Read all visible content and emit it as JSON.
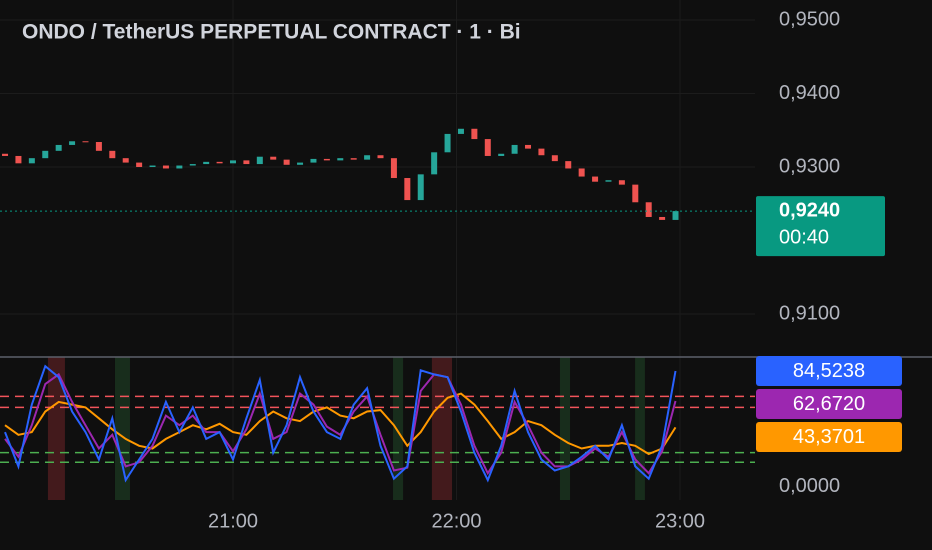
{
  "chart_data": [
    {
      "type": "candlestick",
      "title": "ONDO / TetherUS PERPETUAL CONTRACT · 1 · Bi",
      "x": [
        19.98,
        20.04,
        20.1,
        20.16,
        20.22,
        20.28,
        20.34,
        20.4,
        20.46,
        20.52,
        20.58,
        20.64,
        20.7,
        20.76,
        20.82,
        20.88,
        20.94,
        21.0,
        21.06,
        21.12,
        21.18,
        21.24,
        21.3,
        21.36,
        21.42,
        21.48,
        21.54,
        21.6,
        21.66,
        21.72,
        21.78,
        21.84,
        21.9,
        21.96,
        22.02,
        22.08,
        22.14,
        22.2,
        22.26,
        22.32,
        22.38,
        22.44,
        22.5,
        22.56,
        22.62,
        22.68,
        22.74,
        22.8,
        22.86,
        22.92,
        22.98
      ],
      "open": [
        0.9318,
        0.9315,
        0.9305,
        0.9312,
        0.9322,
        0.933,
        0.9335,
        0.9334,
        0.9322,
        0.9312,
        0.9306,
        0.93,
        0.9302,
        0.9298,
        0.9302,
        0.9304,
        0.9307,
        0.9305,
        0.9309,
        0.9304,
        0.9314,
        0.931,
        0.9303,
        0.9306,
        0.9311,
        0.9309,
        0.9312,
        0.931,
        0.9316,
        0.9312,
        0.9285,
        0.9255,
        0.929,
        0.932,
        0.9345,
        0.9352,
        0.9338,
        0.9315,
        0.9318,
        0.933,
        0.9325,
        0.9316,
        0.9308,
        0.9298,
        0.9287,
        0.928,
        0.9282,
        0.9276,
        0.9252,
        0.9232,
        0.9228
      ],
      "close": [
        0.9315,
        0.9305,
        0.9312,
        0.9322,
        0.933,
        0.9335,
        0.9334,
        0.9322,
        0.9312,
        0.9306,
        0.93,
        0.9302,
        0.9298,
        0.9302,
        0.9304,
        0.9307,
        0.9305,
        0.9309,
        0.9304,
        0.9314,
        0.931,
        0.9303,
        0.9306,
        0.9311,
        0.9309,
        0.9312,
        0.931,
        0.9316,
        0.9312,
        0.9285,
        0.9255,
        0.929,
        0.932,
        0.9345,
        0.9352,
        0.9338,
        0.9315,
        0.9318,
        0.933,
        0.9325,
        0.9316,
        0.9308,
        0.9298,
        0.9287,
        0.928,
        0.9282,
        0.9276,
        0.9252,
        0.9232,
        0.9228,
        0.924
      ],
      "up_color": "#26a69a",
      "down_color": "#ef5350",
      "xlim": [
        19.9575,
        23.3356
      ],
      "xticks": [
        {
          "value": 21,
          "label": "21:00"
        },
        {
          "value": 22,
          "label": "22:00"
        },
        {
          "value": 23,
          "label": "23:00"
        }
      ],
      "ylim": [
        0.90415,
        0.95272
      ],
      "yticks": [
        {
          "value": 0.95,
          "label": "0,9500"
        },
        {
          "value": 0.94,
          "label": "0,9400"
        },
        {
          "value": 0.93,
          "label": "0,9300"
        },
        {
          "value": 0.91,
          "label": "0,9100"
        }
      ],
      "last_price": {
        "value": 0.924,
        "label": "0,9240",
        "color": "#089981"
      },
      "countdown": "00:40",
      "grid": true
    },
    {
      "type": "line",
      "x": [
        19.98,
        20.04,
        20.1,
        20.16,
        20.22,
        20.28,
        20.34,
        20.4,
        20.46,
        20.52,
        20.58,
        20.64,
        20.7,
        20.76,
        20.82,
        20.88,
        20.94,
        21.0,
        21.06,
        21.12,
        21.18,
        21.24,
        21.3,
        21.36,
        21.42,
        21.48,
        21.54,
        21.6,
        21.66,
        21.72,
        21.78,
        21.84,
        21.9,
        21.96,
        22.02,
        22.08,
        22.14,
        22.2,
        22.26,
        22.32,
        22.38,
        22.44,
        22.5,
        22.56,
        22.62,
        22.68,
        22.74,
        22.8,
        22.86,
        22.92,
        22.98
      ],
      "xlim": [
        19.9575,
        23.3356
      ],
      "ylim": [
        -9.5,
        94.7
      ],
      "yticks": [
        {
          "value": 0,
          "label": "0,0000"
        }
      ],
      "series": [
        {
          "color": "#ff9800",
          "last_value": 43.3701,
          "last_label": "43,3701",
          "values": [
            45,
            38,
            40,
            55,
            62,
            60,
            58,
            50,
            42,
            35,
            30,
            28,
            35,
            40,
            45,
            42,
            46,
            40,
            38,
            48,
            55,
            50,
            48,
            55,
            58,
            52,
            50,
            55,
            56,
            45,
            30,
            40,
            55,
            65,
            68,
            60,
            48,
            35,
            40,
            48,
            45,
            38,
            32,
            28,
            30,
            30,
            32,
            30,
            24,
            28,
            43.3701
          ]
        },
        {
          "color": "#9c27b0",
          "last_value": 62.672,
          "last_label": "62,6720",
          "values": [
            35,
            22,
            45,
            75,
            82,
            62,
            45,
            28,
            38,
            15,
            18,
            30,
            52,
            45,
            52,
            40,
            40,
            26,
            42,
            68,
            35,
            40,
            68,
            60,
            44,
            38,
            55,
            66,
            38,
            12,
            14,
            70,
            82,
            80,
            60,
            30,
            10,
            25,
            62,
            45,
            25,
            15,
            15,
            20,
            28,
            22,
            40,
            20,
            10,
            26,
            62.672
          ]
        },
        {
          "color": "#2962ff",
          "last_value": 84.5238,
          "last_label": "84,5238",
          "values": [
            40,
            15,
            60,
            88,
            80,
            55,
            40,
            20,
            50,
            5,
            20,
            35,
            62,
            40,
            58,
            35,
            40,
            20,
            50,
            78,
            25,
            45,
            80,
            55,
            40,
            35,
            60,
            72,
            30,
            6,
            15,
            85,
            82,
            80,
            55,
            25,
            5,
            30,
            70,
            40,
            20,
            12,
            15,
            22,
            30,
            20,
            45,
            15,
            6,
            30,
            84.5238
          ]
        }
      ],
      "levels": [
        {
          "value": 66,
          "color": "#f2545b"
        },
        {
          "value": 58,
          "color": "#f2545b"
        },
        {
          "value": 25,
          "color": "#4caf50"
        },
        {
          "value": 18,
          "color": "#4caf50"
        }
      ],
      "zones": [
        {
          "from": 20.172,
          "to": 20.248,
          "color": "#5a1f22"
        },
        {
          "from": 20.472,
          "to": 20.539,
          "color": "#1d3a22"
        },
        {
          "from": 21.716,
          "to": 21.761,
          "color": "#1d3a22"
        },
        {
          "from": 21.89,
          "to": 21.98,
          "color": "#5a1f22"
        },
        {
          "from": 22.463,
          "to": 22.508,
          "color": "#1d3a22"
        },
        {
          "from": 22.799,
          "to": 22.843,
          "color": "#1d3a22"
        }
      ],
      "grid": true
    }
  ]
}
